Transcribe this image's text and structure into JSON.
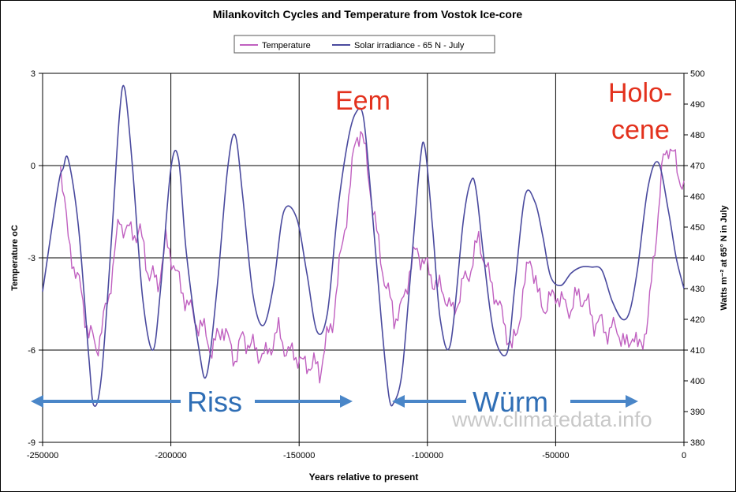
{
  "chart_data": {
    "type": "line",
    "title": "Milankovitch Cycles and Temperature from Vostok Ice-core",
    "xlabel": "Years relative to present",
    "ylabel": "Temperature oC",
    "y2label": "Watts m⁻² at 65° N in July",
    "xlim": [
      -250000,
      0
    ],
    "ylim": [
      -9,
      3
    ],
    "y2lim": [
      380,
      500
    ],
    "x_ticks": [
      "-250000",
      "-200000",
      "-150000",
      "-100000",
      "-50000",
      "0"
    ],
    "y_ticks": [
      "3",
      "0",
      "-3",
      "-6",
      "-9"
    ],
    "y2_ticks": [
      "500",
      "490",
      "480",
      "470",
      "460",
      "450",
      "440",
      "430",
      "420",
      "410",
      "400",
      "390",
      "380"
    ],
    "legend": [
      "Temperature",
      "Solar irradiance - 65 N - July"
    ],
    "colors": {
      "temperature": "#c060c0",
      "solar": "#4a4a9e",
      "grid": "#000000",
      "annotation": "#e3311d",
      "arrow": "#4a86c8",
      "period": "#2f6eb5"
    },
    "series": [
      {
        "name": "Temperature",
        "axis": "left",
        "x": [
          -243000,
          -240000,
          -235000,
          -232000,
          -229000,
          -227000,
          -224000,
          -220000,
          -217000,
          -212000,
          -209000,
          -205000,
          -202000,
          -199000,
          -196000,
          -193000,
          -190000,
          -187000,
          -184000,
          -180000,
          -175000,
          -172000,
          -168000,
          -163000,
          -158000,
          -155000,
          -152000,
          -149000,
          -145000,
          -142000,
          -140000,
          -137000,
          -133000,
          -130000,
          -128000,
          -126000,
          -124000,
          -122000,
          -119000,
          -116000,
          -113000,
          -110000,
          -107000,
          -104000,
          -100000,
          -96000,
          -93000,
          -90000,
          -86000,
          -83000,
          -80000,
          -77000,
          -74000,
          -71000,
          -69000,
          -67000,
          -65000,
          -62000,
          -60000,
          -57000,
          -54000,
          -50000,
          -47000,
          -44000,
          -41000,
          -38000,
          -35000,
          -32000,
          -29000,
          -26000,
          -23000,
          -20000,
          -18000,
          -16000,
          -14000,
          -12000,
          -10000,
          -8000,
          -6000,
          -4000,
          -2000,
          0
        ],
        "values": [
          0.0,
          -2.5,
          -4.0,
          -5.5,
          -6.0,
          -5.5,
          -4.0,
          -1.8,
          -2.0,
          -2.2,
          -3.5,
          -4.0,
          -2.5,
          -3.0,
          -4.2,
          -4.5,
          -5.0,
          -5.5,
          -6.0,
          -5.3,
          -6.2,
          -5.5,
          -5.8,
          -6.2,
          -5.5,
          -6.0,
          -6.0,
          -6.6,
          -6.5,
          -6.8,
          -6.0,
          -5.0,
          -2.5,
          -0.5,
          1.0,
          1.2,
          0.3,
          -1.0,
          -2.5,
          -4.0,
          -5.0,
          -4.5,
          -3.5,
          -2.8,
          -3.5,
          -4.0,
          -4.3,
          -4.7,
          -3.8,
          -3.2,
          -2.5,
          -3.3,
          -4.0,
          -5.0,
          -5.5,
          -6.0,
          -5.3,
          -4.0,
          -3.0,
          -4.2,
          -4.5,
          -4.0,
          -4.5,
          -4.8,
          -4.0,
          -4.5,
          -5.2,
          -5.0,
          -5.5,
          -5.3,
          -5.8,
          -5.5,
          -6.0,
          -5.5,
          -5.0,
          -3.0,
          -1.5,
          0.2,
          0.6,
          0.2,
          -0.5,
          -0.5
        ]
      },
      {
        "name": "Solar irradiance - 65 N - July",
        "axis": "right",
        "x": [
          -250000,
          -244000,
          -242000,
          -240000,
          -236000,
          -232000,
          -230000,
          -227000,
          -223000,
          -220000,
          -218000,
          -215000,
          -211000,
          -207000,
          -204000,
          -200000,
          -197000,
          -194000,
          -189000,
          -186000,
          -182000,
          -178000,
          -175000,
          -172000,
          -168000,
          -164000,
          -160000,
          -156000,
          -151000,
          -147000,
          -143000,
          -139000,
          -135000,
          -131000,
          -128000,
          -125000,
          -122000,
          -118000,
          -115000,
          -113000,
          -110000,
          -107000,
          -103000,
          -101000,
          -98000,
          -95000,
          -91000,
          -86000,
          -83000,
          -81000,
          -78000,
          -74000,
          -69000,
          -66000,
          -62000,
          -58000,
          -55000,
          -52000,
          -48000,
          -44000,
          -40000,
          -36000,
          -32000,
          -28000,
          -24000,
          -21000,
          -18000,
          -14000,
          -10000,
          -6000,
          -3000,
          0
        ],
        "values": [
          429,
          463,
          469,
          472,
          450,
          408,
          392,
          402,
          448,
          487,
          495,
          470,
          427,
          410,
          430,
          469,
          472,
          442,
          410,
          402,
          430,
          468,
          480,
          460,
          428,
          418,
          431,
          455,
          453,
          435,
          416,
          422,
          455,
          478,
          487,
          486,
          460,
          420,
          395,
          393,
          402,
          430,
          470,
          476,
          450,
          420,
          412,
          452,
          465,
          462,
          440,
          415,
          409,
          430,
          460,
          458,
          447,
          434,
          431,
          435,
          437,
          437,
          436,
          426,
          420,
          423,
          437,
          463,
          471,
          455,
          440,
          430
        ]
      }
    ],
    "annotations": {
      "eem": "Eem",
      "holocene_line1": "Holo-",
      "holocene_line2": "cene",
      "riss": "Riss",
      "wurm": "Würm",
      "watermark": "www.climatedata.info"
    }
  }
}
